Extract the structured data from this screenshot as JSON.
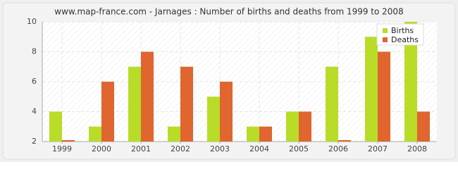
{
  "chart_data": {
    "type": "bar",
    "title": "www.map-france.com - Jarnages : Number of births and deaths from 1999 to 2008",
    "categories": [
      "1999",
      "2000",
      "2001",
      "2002",
      "2003",
      "2004",
      "2005",
      "2006",
      "2007",
      "2008"
    ],
    "series": [
      {
        "name": "Births",
        "color": "#b8dc27",
        "values": [
          4,
          3,
          7,
          3,
          5,
          3,
          4,
          7,
          9,
          10
        ]
      },
      {
        "name": "Deaths",
        "color": "#e0652f",
        "values": [
          2,
          6,
          8,
          7,
          6,
          3,
          4,
          2,
          8,
          4
        ]
      }
    ],
    "ylim": [
      2,
      10
    ],
    "yticks": [
      2,
      4,
      6,
      8,
      10
    ],
    "grid": true,
    "legend": "top-right"
  }
}
